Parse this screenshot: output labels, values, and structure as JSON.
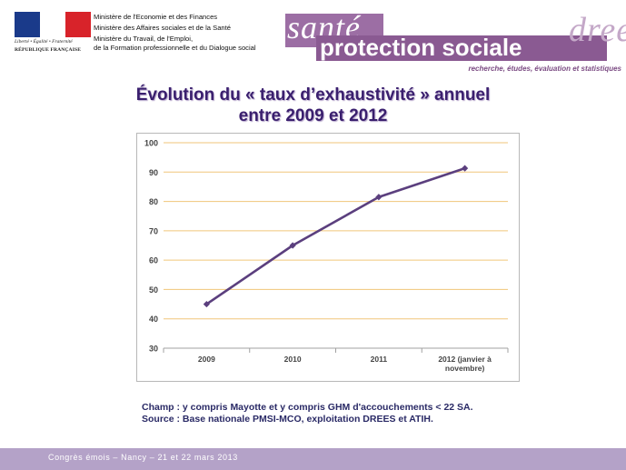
{
  "header": {
    "rf_motto": "Liberté • Égalité • Fraternité",
    "rf_name": "RÉPUBLIQUE FRANÇAISE",
    "ministries": [
      "Ministère de l'Economie et des Finances",
      "Ministère des Affaires sociales et de la Santé",
      "Ministère du Travail, de l'Emploi,",
      "de la Formation professionnelle et du Dialogue social"
    ],
    "brand_sante": "santé",
    "brand_protection": "protection sociale",
    "brand_drees": "drees",
    "tagline": "recherche, études, évaluation et statistiques"
  },
  "slide": {
    "title_line1": "Évolution du « taux d’exhaustivité » annuel",
    "title_line2": "entre 2009 et 2012",
    "note_champ": "Champ : y compris Mayotte et y compris GHM d'accouchements < 22 SA.",
    "note_source": "Source : Base nationale PMSI-MCO, exploitation DREES et ATIH."
  },
  "footer": {
    "text": "Congrès émois – Nancy – 21 et 22 mars 2013"
  },
  "colors": {
    "line": "#5b3f7e",
    "grid": "#f0c67a",
    "title": "#3a1f6e",
    "footer": "#b4a2c8",
    "brand": "#8a5a92"
  },
  "chart_data": {
    "type": "line",
    "title": "",
    "xlabel": "",
    "ylabel": "",
    "categories": [
      "2009",
      "2010",
      "2011",
      "2012 (janvier à novembre)"
    ],
    "category_lines": [
      [
        "2009"
      ],
      [
        "2010"
      ],
      [
        "2011"
      ],
      [
        "2012 (janvier à",
        "novembre)"
      ]
    ],
    "series": [
      {
        "values": [
          45,
          65,
          81.5,
          91.3
        ]
      }
    ],
    "ylim": [
      30,
      100
    ],
    "yticks": [
      30,
      40,
      50,
      60,
      70,
      80,
      90,
      100
    ],
    "grid": true,
    "legend": "none"
  }
}
